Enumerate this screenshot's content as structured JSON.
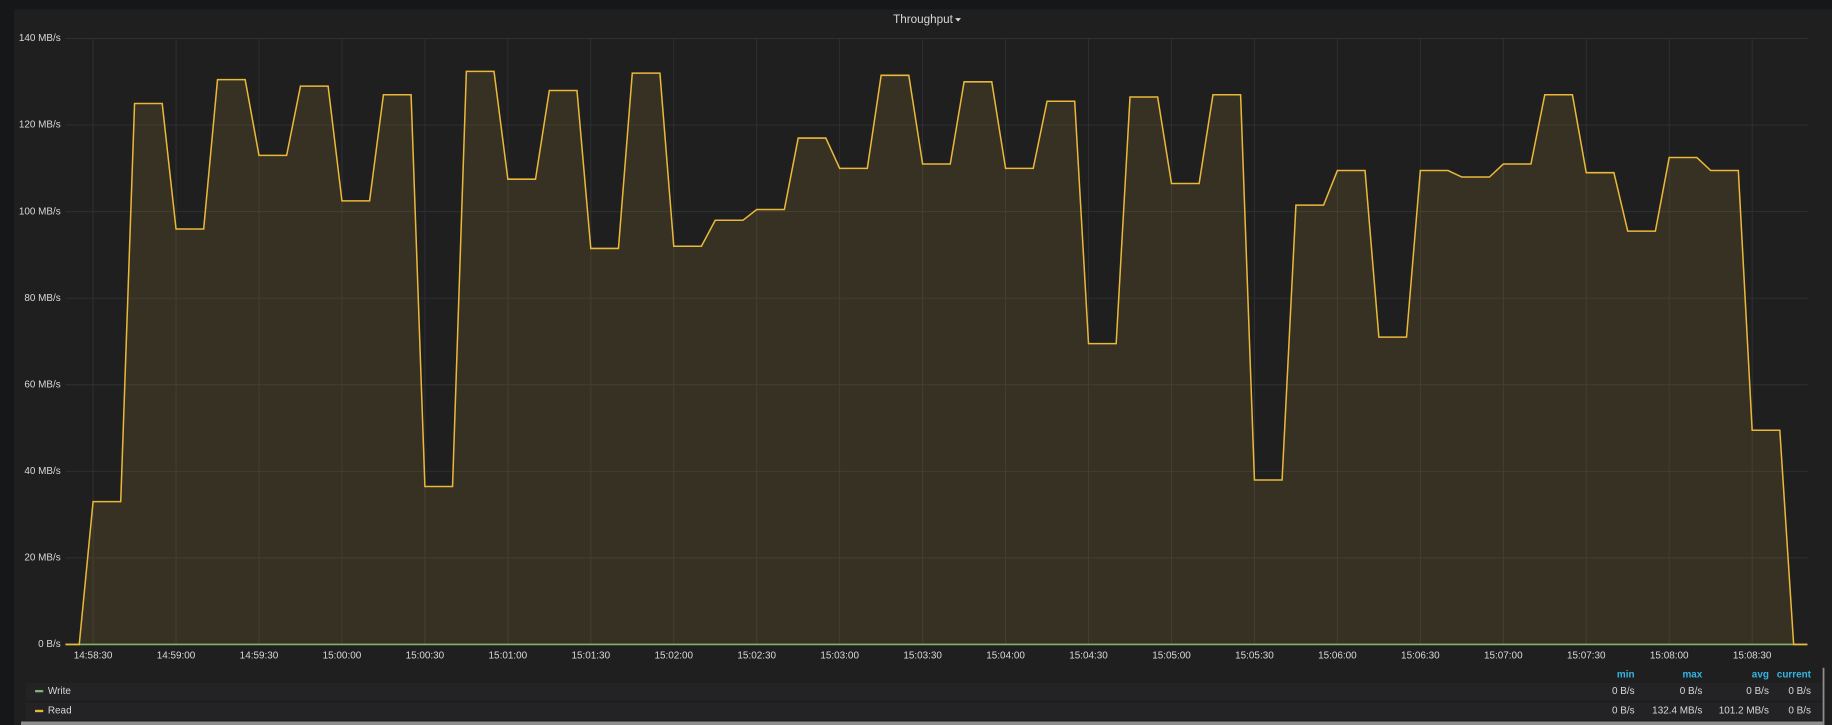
{
  "chart_data": {
    "type": "line",
    "title": "Throughput",
    "x": [
      "14:58:20",
      "14:58:25",
      "14:58:30",
      "14:58:40",
      "14:58:45",
      "14:58:55",
      "14:59:00",
      "14:59:10",
      "14:59:15",
      "14:59:25",
      "14:59:30",
      "14:59:40",
      "14:59:45",
      "14:59:55",
      "15:00:00",
      "15:00:10",
      "15:00:15",
      "15:00:25",
      "15:00:30",
      "15:00:40",
      "15:00:45",
      "15:00:55",
      "15:01:00",
      "15:01:10",
      "15:01:15",
      "15:01:25",
      "15:01:30",
      "15:01:40",
      "15:01:45",
      "15:01:55",
      "15:02:00",
      "15:02:10",
      "15:02:15",
      "15:02:25",
      "15:02:30",
      "15:02:40",
      "15:02:45",
      "15:02:55",
      "15:03:00",
      "15:03:10",
      "15:03:15",
      "15:03:25",
      "15:03:30",
      "15:03:40",
      "15:03:45",
      "15:03:55",
      "15:04:00",
      "15:04:10",
      "15:04:15",
      "15:04:25",
      "15:04:30",
      "15:04:40",
      "15:04:45",
      "15:04:55",
      "15:05:00",
      "15:05:10",
      "15:05:15",
      "15:05:25",
      "15:05:30",
      "15:05:40",
      "15:05:45",
      "15:05:55",
      "15:06:00",
      "15:06:10",
      "15:06:15",
      "15:06:25",
      "15:06:30",
      "15:06:40",
      "15:06:45",
      "15:06:55",
      "15:07:00",
      "15:07:10",
      "15:07:15",
      "15:07:25",
      "15:07:30",
      "15:07:40",
      "15:07:45",
      "15:07:55",
      "15:08:00",
      "15:08:10",
      "15:08:15",
      "15:08:25",
      "15:08:30",
      "15:08:40",
      "15:08:45",
      "15:08:50"
    ],
    "series": [
      {
        "name": "Write",
        "color": "#7eb26d",
        "x": [
          "14:58:20",
          "15:08:50"
        ],
        "values": [
          0,
          0
        ]
      },
      {
        "name": "Read",
        "color": "#eab839",
        "fill": true,
        "values": [
          0,
          0,
          33,
          33,
          125,
          125,
          96,
          96,
          130.5,
          130.5,
          113,
          113,
          129,
          129,
          102.5,
          102.5,
          127,
          127,
          36.5,
          36.5,
          132.4,
          132.4,
          107.5,
          107.5,
          128,
          128,
          91.5,
          91.5,
          132,
          132,
          92,
          92,
          98,
          98,
          100.5,
          100.5,
          117,
          117,
          110,
          110,
          131.5,
          131.5,
          111,
          111,
          130,
          130,
          110,
          110,
          125.5,
          125.5,
          69.5,
          69.5,
          126.5,
          126.5,
          106.5,
          106.5,
          127,
          127,
          38,
          38,
          101.5,
          101.5,
          109.5,
          109.5,
          71,
          71,
          109.5,
          109.5,
          108,
          108,
          111,
          111,
          127,
          127,
          109,
          109,
          95.5,
          95.5,
          112.5,
          112.5,
          109.5,
          109.5,
          49.5,
          49.5,
          0,
          0
        ]
      }
    ],
    "xlim": [
      "14:58:20",
      "15:08:50"
    ],
    "xticks": [
      "14:58:30",
      "14:59:00",
      "14:59:30",
      "15:00:00",
      "15:00:30",
      "15:01:00",
      "15:01:30",
      "15:02:00",
      "15:02:30",
      "15:03:00",
      "15:03:30",
      "15:04:00",
      "15:04:30",
      "15:05:00",
      "15:05:30",
      "15:06:00",
      "15:06:30",
      "15:07:00",
      "15:07:30",
      "15:08:00",
      "15:08:30"
    ],
    "ylim": [
      0,
      140
    ],
    "yticks": [
      {
        "value": 0,
        "label": "0 B/s"
      },
      {
        "value": 20,
        "label": "20 MB/s"
      },
      {
        "value": 40,
        "label": "40 MB/s"
      },
      {
        "value": 60,
        "label": "60 MB/s"
      },
      {
        "value": 80,
        "label": "80 MB/s"
      },
      {
        "value": 100,
        "label": "100 MB/s"
      },
      {
        "value": 120,
        "label": "120 MB/s"
      },
      {
        "value": 140,
        "label": "140 MB/s"
      }
    ],
    "grid": true
  },
  "legend": {
    "columns": [
      "min",
      "max",
      "avg",
      "current"
    ],
    "stats": [
      [
        "0 B/s",
        "0 B/s",
        "0 B/s",
        "0 B/s"
      ],
      [
        "0 B/s",
        "132.4 MB/s",
        "101.2 MB/s",
        "0 B/s"
      ]
    ]
  }
}
